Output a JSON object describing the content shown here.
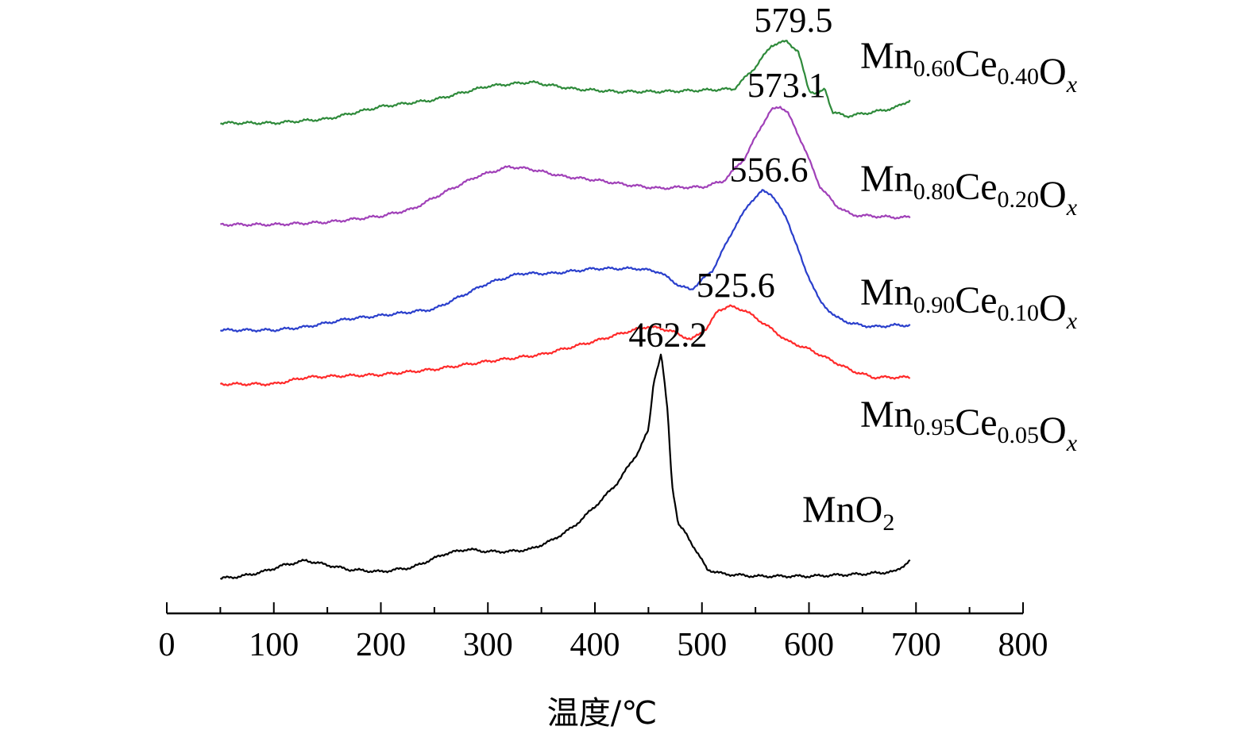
{
  "chart_data": {
    "type": "line",
    "xlabel": "温度/℃",
    "ylabel": "",
    "xlim": [
      0,
      800
    ],
    "x_ticks": [
      0,
      100,
      200,
      300,
      400,
      500,
      600,
      700,
      800
    ],
    "grid": false,
    "legend": "right-of-curves",
    "series": [
      {
        "id": "mno2",
        "name_parts": [
          {
            "t": "MnO"
          },
          {
            "t": "2",
            "sub": true
          }
        ],
        "color": "#000000",
        "x": [
          50,
          70,
          90,
          110,
          130,
          150,
          170,
          200,
          230,
          260,
          280,
          300,
          320,
          340,
          360,
          380,
          400,
          420,
          440,
          450,
          455,
          462,
          468,
          472,
          478,
          485,
          495,
          505,
          520,
          550,
          600,
          650,
          680,
          695
        ],
        "y": [
          0.0,
          0.01,
          0.03,
          0.06,
          0.08,
          0.06,
          0.04,
          0.03,
          0.05,
          0.11,
          0.13,
          0.12,
          0.12,
          0.13,
          0.17,
          0.23,
          0.32,
          0.42,
          0.56,
          0.66,
          0.88,
          1.0,
          0.74,
          0.42,
          0.24,
          0.2,
          0.12,
          0.04,
          0.02,
          0.01,
          0.01,
          0.02,
          0.03,
          0.08
        ]
      },
      {
        "id": "mn095",
        "name_parts": [
          {
            "t": "Mn"
          },
          {
            "t": "0.95",
            "sub": true
          },
          {
            "t": "Ce"
          },
          {
            "t": "0.05",
            "sub": true
          },
          {
            "t": "O"
          },
          {
            "t": "x",
            "sub": true,
            "italic": true
          }
        ],
        "color": "#ff2a2a",
        "x": [
          50,
          100,
          130,
          160,
          200,
          250,
          300,
          350,
          400,
          430,
          450,
          470,
          490,
          505,
          515,
          525.6,
          540,
          560,
          580,
          600,
          620,
          640,
          660,
          680,
          695
        ],
        "y": [
          0.0,
          0.0,
          0.05,
          0.06,
          0.07,
          0.11,
          0.17,
          0.22,
          0.32,
          0.39,
          0.43,
          0.4,
          0.33,
          0.42,
          0.55,
          0.58,
          0.55,
          0.44,
          0.32,
          0.26,
          0.18,
          0.1,
          0.05,
          0.05,
          0.05
        ]
      },
      {
        "id": "mn090",
        "name_parts": [
          {
            "t": "Mn"
          },
          {
            "t": "0.90",
            "sub": true
          },
          {
            "t": "Ce"
          },
          {
            "t": "0.10",
            "sub": true
          },
          {
            "t": "O"
          },
          {
            "t": "x",
            "sub": true,
            "italic": true
          }
        ],
        "color": "#2a3fcc",
        "x": [
          50,
          100,
          130,
          170,
          200,
          250,
          300,
          330,
          360,
          400,
          440,
          460,
          480,
          490,
          510,
          530,
          545,
          556.6,
          565,
          580,
          595,
          610,
          625,
          640,
          660,
          680,
          695
        ],
        "y": [
          0.0,
          0.0,
          0.02,
          0.07,
          0.09,
          0.13,
          0.29,
          0.35,
          0.35,
          0.38,
          0.38,
          0.36,
          0.27,
          0.25,
          0.37,
          0.63,
          0.79,
          0.86,
          0.84,
          0.68,
          0.4,
          0.18,
          0.08,
          0.04,
          0.02,
          0.03,
          0.03
        ]
      },
      {
        "id": "mn080",
        "name_parts": [
          {
            "t": "Mn"
          },
          {
            "t": "0.80",
            "sub": true
          },
          {
            "t": "Ce"
          },
          {
            "t": "0.20",
            "sub": true
          },
          {
            "t": "O"
          },
          {
            "t": "x",
            "sub": true,
            "italic": true
          }
        ],
        "color": "#a040b8",
        "x": [
          50,
          100,
          150,
          200,
          230,
          260,
          290,
          320,
          340,
          370,
          400,
          430,
          460,
          480,
          500,
          520,
          540,
          555,
          565,
          573.1,
          580,
          595,
          610,
          625,
          640,
          660,
          680,
          695
        ],
        "y": [
          0.0,
          0.0,
          0.02,
          0.07,
          0.13,
          0.27,
          0.4,
          0.48,
          0.46,
          0.4,
          0.37,
          0.33,
          0.3,
          0.31,
          0.31,
          0.36,
          0.55,
          0.81,
          0.95,
          0.98,
          0.93,
          0.65,
          0.32,
          0.16,
          0.08,
          0.07,
          0.06,
          0.06
        ]
      },
      {
        "id": "mn060",
        "name_parts": [
          {
            "t": "Mn"
          },
          {
            "t": "0.60",
            "sub": true
          },
          {
            "t": "Ce"
          },
          {
            "t": "0.40",
            "sub": true
          },
          {
            "t": "O"
          },
          {
            "t": "x",
            "sub": true,
            "italic": true
          }
        ],
        "color": "#2e8a3a",
        "x": [
          50,
          100,
          150,
          200,
          250,
          300,
          340,
          380,
          420,
          460,
          500,
          530,
          550,
          565,
          579.5,
          590,
          600,
          608,
          615,
          622,
          635,
          660,
          680,
          695
        ],
        "y": [
          0.0,
          0.0,
          0.03,
          0.12,
          0.17,
          0.27,
          0.3,
          0.25,
          0.23,
          0.23,
          0.24,
          0.25,
          0.41,
          0.57,
          0.6,
          0.52,
          0.24,
          0.21,
          0.25,
          0.08,
          0.05,
          0.08,
          0.11,
          0.17
        ]
      }
    ],
    "annotations": [
      {
        "series": "mno2",
        "x": 462.2,
        "text": "462.2"
      },
      {
        "series": "mn095",
        "x": 525.6,
        "text": "525.6"
      },
      {
        "series": "mn090",
        "x": 556.6,
        "text": "556.6"
      },
      {
        "series": "mn080",
        "x": 573.1,
        "text": "573.1"
      },
      {
        "series": "mn060",
        "x": 579.5,
        "text": "579.5"
      }
    ]
  }
}
